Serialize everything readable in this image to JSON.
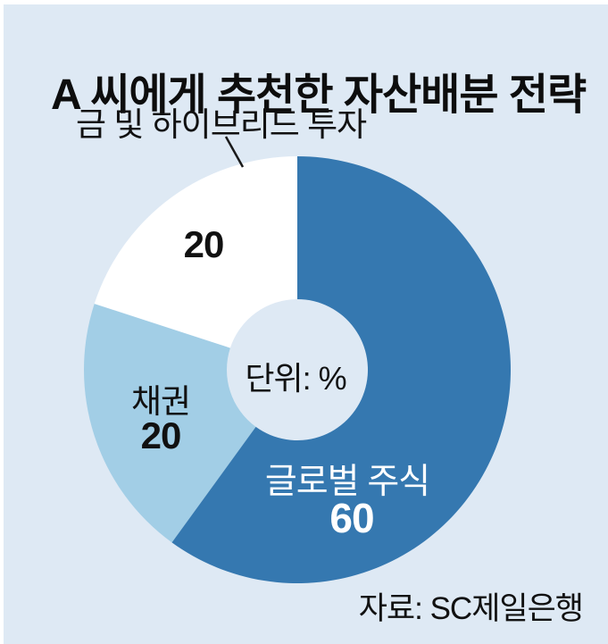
{
  "header": {
    "title": "A 씨에게 추천한 자산배분 전략"
  },
  "chart_data": {
    "type": "donut",
    "title": "A 씨에게 추천한 자산배분 전략",
    "unit_label": "단위: %",
    "source": "자료: SC제일은행",
    "start_angle_deg": 0,
    "clockwise": true,
    "inner_radius_ratio": 0.33,
    "background_color": "#dee9f4",
    "slices": [
      {
        "label": "글로벌 주식",
        "value": 60,
        "color": "#3578b0",
        "label_color": "#ffffff"
      },
      {
        "label": "채권",
        "value": 20,
        "color": "#a2cee6",
        "label_color": "#111111"
      },
      {
        "label": "금 및 하이브리드 투자",
        "value": 20,
        "color": "#ffffff",
        "label_color": "#111111"
      }
    ]
  }
}
